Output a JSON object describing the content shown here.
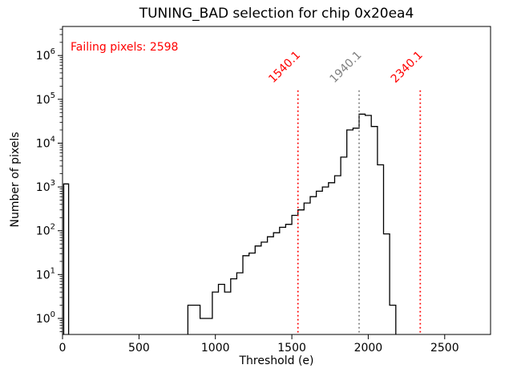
{
  "chart_data": {
    "type": "bar",
    "subtype": "step-histogram",
    "title": "TUNING_BAD selection for chip 0x20ea4",
    "xlabel": "Threshold (e)",
    "ylabel": "Number of pixels",
    "yscale": "log",
    "grid": false,
    "legend": null,
    "xlim": [
      0,
      2800
    ],
    "ylim_log": [
      0.43,
      4600000
    ],
    "xticks": [
      0,
      500,
      1000,
      1500,
      2000,
      2500
    ],
    "ytick_exponents": [
      0,
      1,
      2,
      3,
      4,
      5,
      6
    ],
    "line_color": "#000000",
    "annotation": {
      "text": "Failing pixels: 2598",
      "color": "#ff0000"
    },
    "histogram_segments": [
      {
        "bin_edges": [
          8,
          40
        ],
        "counts": [
          1175
        ]
      },
      {
        "bin_edges": [
          820,
          860,
          900,
          940,
          980,
          1020,
          1060,
          1100,
          1140,
          1180,
          1220,
          1260,
          1300,
          1340,
          1380,
          1420,
          1460,
          1500,
          1540,
          1580,
          1620,
          1660,
          1700,
          1740,
          1780,
          1820,
          1860,
          1900,
          1940,
          1980,
          2020,
          2060,
          2100,
          2140,
          2180
        ],
        "counts": [
          2,
          2,
          1,
          1,
          4,
          6,
          4,
          8,
          11,
          27,
          31,
          45,
          55,
          73,
          90,
          120,
          140,
          225,
          300,
          430,
          600,
          800,
          1000,
          1250,
          1800,
          4800,
          20000,
          22000,
          46000,
          43000,
          24000,
          3200,
          85,
          2
        ]
      }
    ],
    "vlines": [
      {
        "x": 1540.1,
        "label": "1540.1",
        "color": "#ff0000",
        "style": "dotted",
        "y_top": 160000
      },
      {
        "x": 1940.1,
        "label": "1940.1",
        "color": "#808080",
        "style": "dotted",
        "y_top": 160000
      },
      {
        "x": 2340.1,
        "label": "2340.1",
        "color": "#ff0000",
        "style": "dotted",
        "y_top": 160000
      }
    ]
  }
}
